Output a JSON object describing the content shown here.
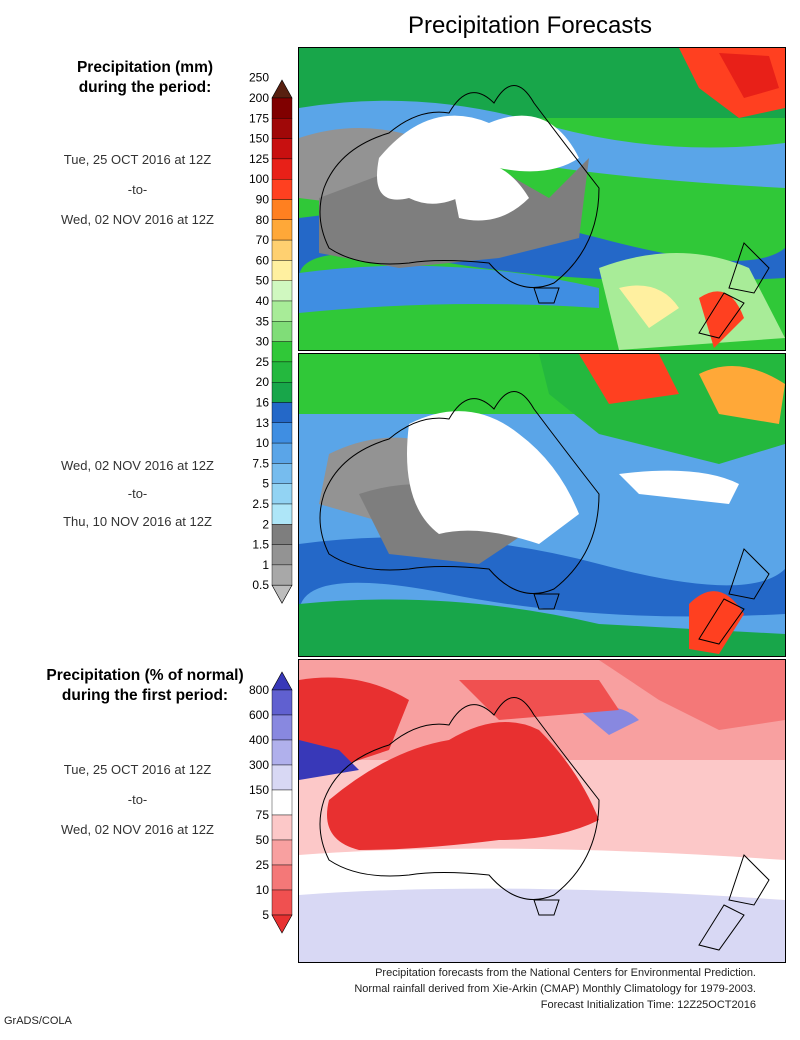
{
  "title": "Precipitation Forecasts",
  "precip_section": {
    "heading_line1": "Precipitation (mm)",
    "heading_line2": "during the period:",
    "period1": {
      "start": "Tue, 25 OCT 2016 at 12Z",
      "sep": "-to-",
      "end": "Wed, 02 NOV 2016 at 12Z"
    },
    "period2": {
      "start": "Wed, 02 NOV 2016 at 12Z",
      "sep": "-to-",
      "end": "Thu, 10 NOV 2016 at 12Z"
    },
    "colorbar": {
      "levels": [
        "0.5",
        "1",
        "1.5",
        "2",
        "2.5",
        "5",
        "7.5",
        "10",
        "13",
        "16",
        "20",
        "25",
        "30",
        "35",
        "40",
        "50",
        "60",
        "70",
        "80",
        "90",
        "100",
        "125",
        "150",
        "175",
        "200",
        "250"
      ],
      "colors": [
        "#bdbdbd",
        "#a8a8a8",
        "#939393",
        "#7e7e7e",
        "#aee6f8",
        "#92d3f3",
        "#76bcee",
        "#5aa5e8",
        "#3f8ee2",
        "#2468c8",
        "#18a64a",
        "#24b83e",
        "#30c838",
        "#80dd78",
        "#a8ec98",
        "#d0f8c0",
        "#fff0a0",
        "#ffd070",
        "#ffa838",
        "#ff8020",
        "#ff4020",
        "#e82018",
        "#c81010",
        "#a00808",
        "#800000",
        "#582010"
      ]
    }
  },
  "pct_section": {
    "heading_line1": "Precipitation (% of normal)",
    "heading_line2": "during the first period:",
    "period": {
      "start": "Tue, 25 OCT 2016 at 12Z",
      "sep": "-to-",
      "end": "Wed, 02 NOV 2016 at 12Z"
    },
    "colorbar": {
      "levels": [
        "5",
        "10",
        "25",
        "50",
        "75",
        "150",
        "300",
        "400",
        "600",
        "800"
      ],
      "colors": [
        "#e83030",
        "#f05050",
        "#f47878",
        "#f8a0a0",
        "#fcc8c8",
        "#ffffff",
        "#d8d8f4",
        "#b0b0ec",
        "#8888e0",
        "#6060d0",
        "#3838b8"
      ]
    }
  },
  "footnotes": [
    "Precipitation forecasts from the National Centers for Environmental Prediction.",
    "Normal rainfall derived from Xie-Arkin (CMAP) Monthly Climatology for 1979-2003.",
    "Forecast Initialization Time: 12Z25OCT2016"
  ],
  "credit": "GrADS/COLA"
}
